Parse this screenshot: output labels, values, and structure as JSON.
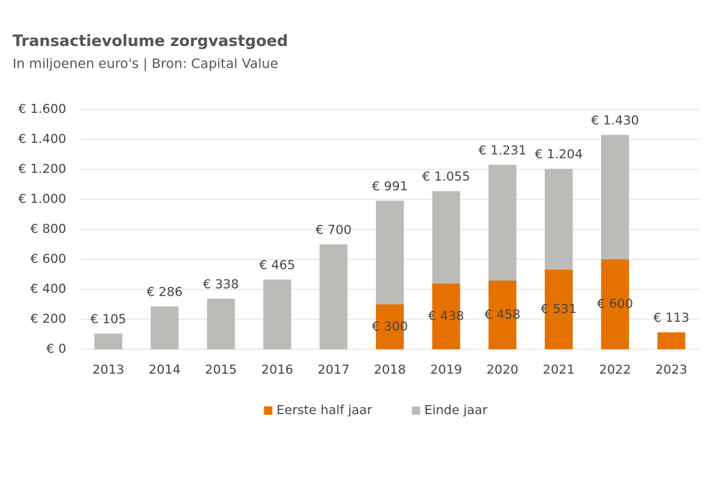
{
  "chart_data": {
    "type": "bar",
    "barmode": "overlay",
    "title": "Transactievolume zorgvastgoed",
    "subtitle": "In miljoenen euro's | Bron: Capital Value",
    "categories": [
      "2013",
      "2014",
      "2015",
      "2016",
      "2017",
      "2018",
      "2019",
      "2020",
      "2021",
      "2022",
      "2023"
    ],
    "series": [
      {
        "name": "Eerste half jaar",
        "color": "#e57200",
        "values": [
          null,
          null,
          null,
          null,
          null,
          300,
          438,
          458,
          531,
          600,
          113
        ],
        "value_labels": [
          null,
          null,
          null,
          null,
          null,
          "€ 300",
          "€ 438",
          "€ 458",
          "€ 531",
          "€ 600",
          "€ 113"
        ]
      },
      {
        "name": "Einde jaar",
        "color": "#bcbbb7",
        "values": [
          105,
          286,
          338,
          465,
          700,
          991,
          1055,
          1231,
          1204,
          1430,
          null
        ],
        "value_labels": [
          "€ 105",
          "€ 286",
          "€ 338",
          "€ 465",
          "€ 700",
          "€ 991",
          "€ 1.055",
          "€ 1.231",
          "€ 1.204",
          "€ 1.430",
          null
        ]
      }
    ],
    "ylim": [
      0,
      1600
    ],
    "yticks": [
      {
        "value": 0,
        "label": "€ 0"
      },
      {
        "value": 200,
        "label": "€ 200"
      },
      {
        "value": 400,
        "label": "€ 400"
      },
      {
        "value": 600,
        "label": "€ 600"
      },
      {
        "value": 800,
        "label": "€ 800"
      },
      {
        "value": 1000,
        "label": "€ 1.000"
      },
      {
        "value": 1200,
        "label": "€ 1.200"
      },
      {
        "value": 1400,
        "label": "€ 1.400"
      },
      {
        "value": 1600,
        "label": "€ 1.600"
      }
    ],
    "grid": true,
    "legend": "bottom"
  }
}
